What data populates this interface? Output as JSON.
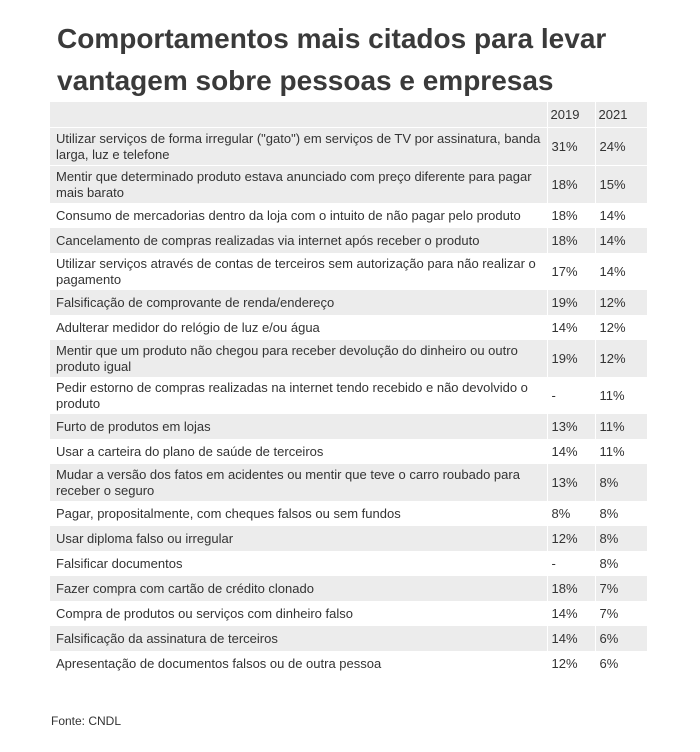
{
  "title": "Comportamentos mais citados para levar vantagem sobre pessoas e empresas",
  "source": "Fonte: CNDL",
  "chart_data": {
    "type": "table",
    "title": "Comportamentos mais citados para levar vantagem sobre pessoas e empresas",
    "columns": [
      "",
      "2019",
      "2021"
    ],
    "rows": [
      {
        "label": "Utilizar serviços de forma irregular (\"gato\") em serviços de TV por assinatura, banda larga, luz e telefone",
        "y2019": "31%",
        "y2021": "24%"
      },
      {
        "label": "Mentir que determinado produto estava anunciado com preço diferente para pagar mais barato",
        "y2019": "18%",
        "y2021": "15%"
      },
      {
        "label": "Consumo de mercadorias dentro da loja com o intuito de não pagar pelo produto",
        "y2019": "18%",
        "y2021": "14%"
      },
      {
        "label": "Cancelamento de compras realizadas via internet após receber o produto",
        "y2019": "18%",
        "y2021": "14%"
      },
      {
        "label": "Utilizar serviços através de contas de terceiros sem autorização para não realizar o pagamento",
        "y2019": "17%",
        "y2021": "14%"
      },
      {
        "label": "Falsificação de comprovante de renda/endereço",
        "y2019": "19%",
        "y2021": "12%"
      },
      {
        "label": "Adulterar medidor do relógio de luz e/ou água",
        "y2019": "14%",
        "y2021": "12%"
      },
      {
        "label": "Mentir que um produto não chegou para receber devolução do dinheiro ou outro produto igual",
        "y2019": "19%",
        "y2021": "12%"
      },
      {
        "label": "Pedir estorno de compras realizadas na internet tendo recebido e não devolvido o produto",
        "y2019": "-",
        "y2021": "11%"
      },
      {
        "label": "Furto de produtos em lojas",
        "y2019": "13%",
        "y2021": "11%"
      },
      {
        "label": "Usar a carteira do plano de saúde de terceiros",
        "y2019": "14%",
        "y2021": "11%"
      },
      {
        "label": "Mudar a versão dos fatos em acidentes ou mentir que teve o carro roubado para receber o seguro",
        "y2019": "13%",
        "y2021": "8%"
      },
      {
        "label": "Pagar, propositalmente, com cheques falsos ou sem fundos",
        "y2019": "8%",
        "y2021": "8%"
      },
      {
        "label": "Usar diploma falso ou irregular",
        "y2019": "12%",
        "y2021": "8%"
      },
      {
        "label": "Falsificar documentos",
        "y2019": "-",
        "y2021": "8%"
      },
      {
        "label": "Fazer compra com cartão de crédito clonado",
        "y2019": "18%",
        "y2021": "7%"
      },
      {
        "label": "Compra de produtos ou serviços com dinheiro falso",
        "y2019": "14%",
        "y2021": "7%"
      },
      {
        "label": "Falsificação da assinatura de terceiros",
        "y2019": "14%",
        "y2021": "6%"
      },
      {
        "label": "Apresentação de documentos falsos ou de outra pessoa",
        "y2019": "12%",
        "y2021": "6%"
      }
    ]
  }
}
